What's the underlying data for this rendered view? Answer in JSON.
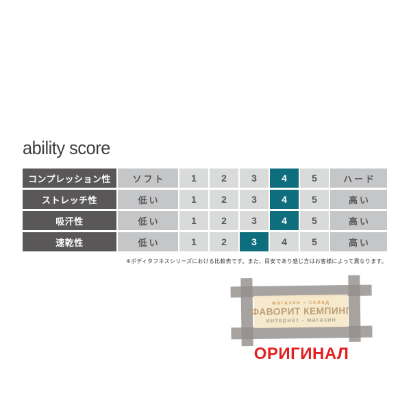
{
  "title": "ability score",
  "chart_data": {
    "type": "table",
    "title": "ability score",
    "categories": [
      "コンプレッション性",
      "ストレッチ性",
      "吸汗性",
      "速乾性"
    ],
    "scale": [
      "1",
      "2",
      "3",
      "4",
      "5"
    ],
    "values": [
      4,
      4,
      4,
      3
    ],
    "left_labels": [
      "ソフト",
      "低い",
      "低い",
      "低い"
    ],
    "right_labels": [
      "ハード",
      "高い",
      "高い",
      "高い"
    ]
  },
  "table": {
    "rows": [
      {
        "label": "コンプレッション性",
        "left": "ソフト",
        "right": "ハード",
        "active": 4
      },
      {
        "label": "ストレッチ性",
        "left": "低い",
        "right": "高い",
        "active": 4
      },
      {
        "label": "吸汗性",
        "left": "低い",
        "right": "高い",
        "active": 4
      },
      {
        "label": "速乾性",
        "left": "低い",
        "right": "高い",
        "active": 3
      }
    ],
    "colors": {
      "header_bg": "#595757",
      "cell_bg": "#d9dada",
      "end_bg": "#c5c6c7",
      "active_bg": "#0e6e7e",
      "active_text": "#ffffff",
      "cell_text": "#595757"
    }
  },
  "footnote": "※ボディタフネスシリーズにおける比較表です。また、目安であり感じ方はお客様によって異なります。",
  "watermark": {
    "line1": "магазин - склад",
    "line2": "ФАВОРИТ КЕМПИНГ",
    "line3": "интернет - магазин",
    "original": "ОРИГИНАЛ",
    "colors": {
      "frame": "#948f8b",
      "panel": "#f5e8c9",
      "original_text": "#e31e1e"
    }
  }
}
